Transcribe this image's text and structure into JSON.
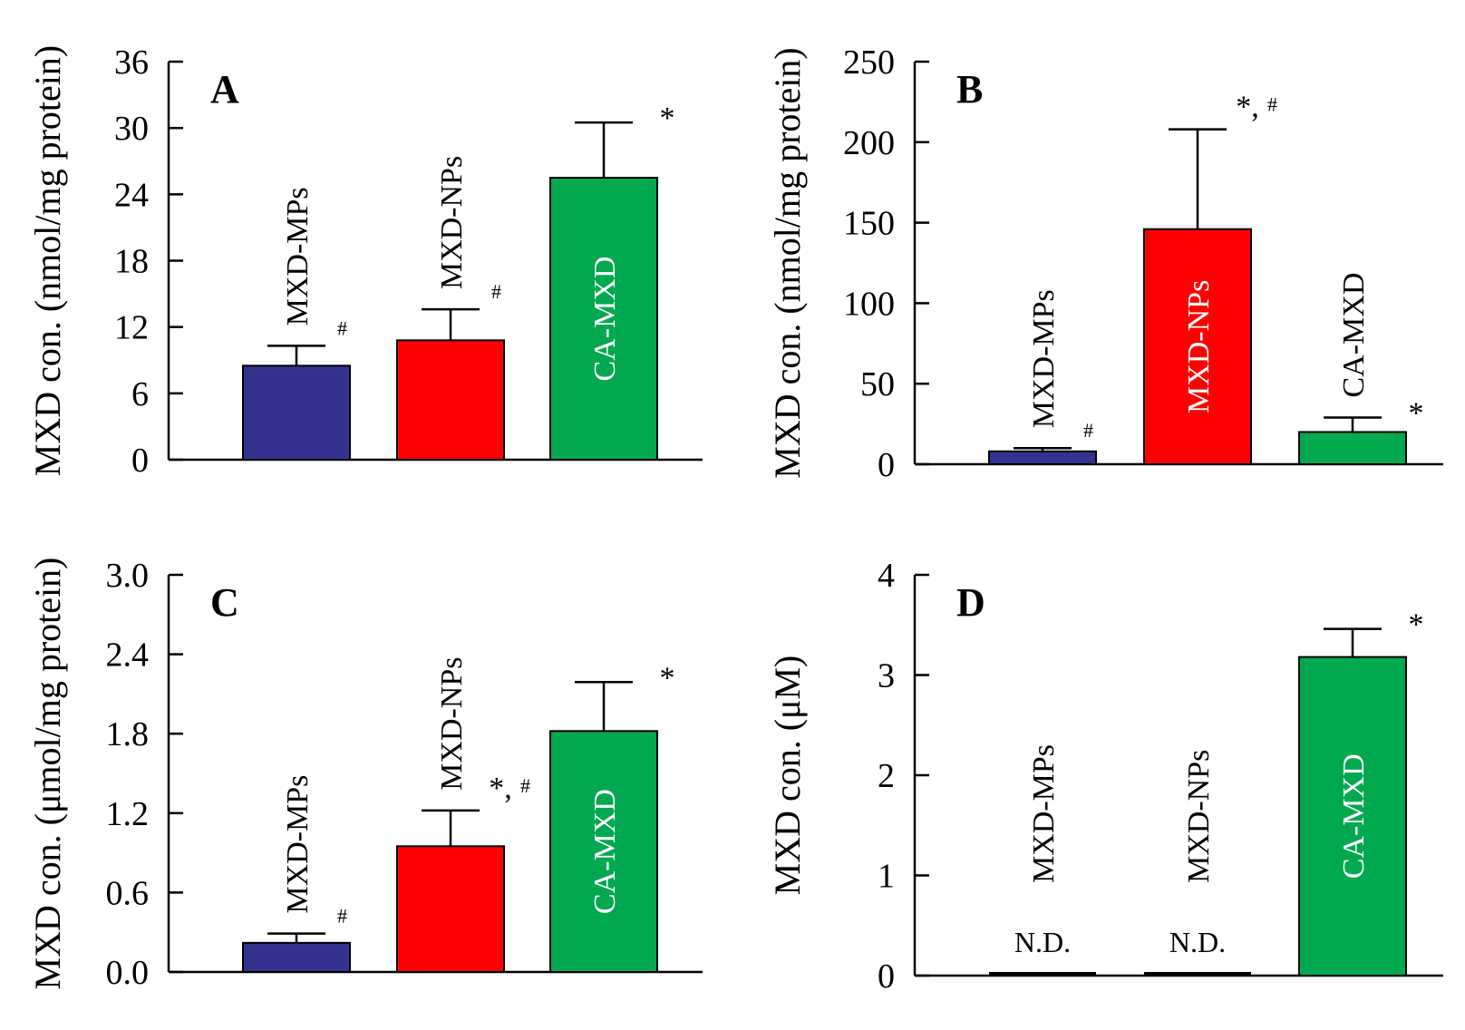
{
  "figure": {
    "background": "#ffffff"
  },
  "chart_data": [
    {
      "panel": "A",
      "type": "bar",
      "ylabel": "MXD con. (nmol/mg protein)",
      "ylim": [
        0,
        36
      ],
      "yticks": [
        "0",
        "6",
        "12",
        "18",
        "24",
        "30",
        "36"
      ],
      "bars": [
        {
          "category": "MXD-MPs",
          "value": 8.5,
          "error": 1.8,
          "color": "#33338f",
          "label": "MXD-MPs",
          "label_inside": false,
          "label_color": "#000000",
          "sig": "",
          "hash": "#"
        },
        {
          "category": "MXD-NPs",
          "value": 10.8,
          "error": 2.8,
          "color": "#ff0000",
          "label": "MXD-NPs",
          "label_inside": false,
          "label_color": "#000000",
          "sig": "",
          "hash": "#"
        },
        {
          "category": "CA-MXD",
          "value": 25.5,
          "error": 5.0,
          "color": "#00a84f",
          "label": "CA-MXD",
          "label_inside": true,
          "label_color": "#ffffff",
          "sig": "*",
          "hash": ""
        }
      ]
    },
    {
      "panel": "B",
      "type": "bar",
      "ylabel": "MXD con. (nmol/mg protein)",
      "ylim": [
        0,
        250
      ],
      "yticks": [
        "0",
        "50",
        "100",
        "150",
        "200",
        "250"
      ],
      "bars": [
        {
          "category": "MXD-MPs",
          "value": 8,
          "error": 2,
          "color": "#33338f",
          "label": "MXD-MPs",
          "label_inside": false,
          "label_color": "#000000",
          "sig": "",
          "hash": "#"
        },
        {
          "category": "MXD-NPs",
          "value": 146,
          "error": 62,
          "color": "#ff0000",
          "label": "MXD-NPs",
          "label_inside": true,
          "label_color": "#ffffff",
          "sig": "*,",
          "hash": "#"
        },
        {
          "category": "CA-MXD",
          "value": 20,
          "error": 9,
          "color": "#00a84f",
          "label": "CA-MXD",
          "label_inside": false,
          "label_color": "#000000",
          "sig": "*",
          "hash": ""
        }
      ]
    },
    {
      "panel": "C",
      "type": "bar",
      "ylabel": "MXD con. (μmol/mg protein)",
      "ylim": [
        0,
        3.0
      ],
      "yticks": [
        "0.0",
        "0.6",
        "1.2",
        "1.8",
        "2.4",
        "3.0"
      ],
      "bars": [
        {
          "category": "MXD-MPs",
          "value": 0.22,
          "error": 0.07,
          "color": "#33338f",
          "label": "MXD-MPs",
          "label_inside": false,
          "label_color": "#000000",
          "sig": "",
          "hash": "#"
        },
        {
          "category": "MXD-NPs",
          "value": 0.95,
          "error": 0.27,
          "color": "#ff0000",
          "label": "MXD-NPs",
          "label_inside": false,
          "label_color": "#000000",
          "sig": "*,",
          "hash": "#"
        },
        {
          "category": "CA-MXD",
          "value": 1.82,
          "error": 0.37,
          "color": "#00a84f",
          "label": "CA-MXD",
          "label_inside": true,
          "label_color": "#ffffff",
          "sig": "*",
          "hash": ""
        }
      ]
    },
    {
      "panel": "D",
      "type": "bar",
      "ylabel": "MXD con. (μM)",
      "ylim": [
        0,
        4
      ],
      "yticks": [
        "0",
        "1",
        "2",
        "3",
        "4"
      ],
      "bars": [
        {
          "category": "MXD-MPs",
          "value": 0,
          "error": 0,
          "color": "#33338f",
          "label": "MXD-MPs",
          "label_inside": false,
          "label_color": "#000000",
          "sig": "",
          "hash": "",
          "note": "N.D."
        },
        {
          "category": "MXD-NPs",
          "value": 0,
          "error": 0,
          "color": "#ff0000",
          "label": "MXD-NPs",
          "label_inside": false,
          "label_color": "#000000",
          "sig": "",
          "hash": "",
          "note": "N.D."
        },
        {
          "category": "CA-MXD",
          "value": 3.18,
          "error": 0.28,
          "color": "#00a84f",
          "label": "CA-MXD",
          "label_inside": true,
          "label_color": "#ffffff",
          "sig": "*",
          "hash": ""
        }
      ]
    }
  ]
}
